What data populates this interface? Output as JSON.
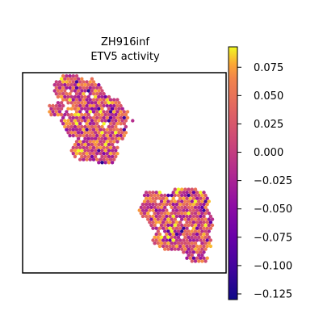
{
  "chart_data": {
    "type": "scatter",
    "title": "ZH916inf",
    "subtitle": "ETV5 activity",
    "xlabel": "",
    "ylabel": "",
    "grid": false,
    "colormap": "plasma",
    "colorbar": {
      "min": -0.13,
      "max": 0.093,
      "ticks": [
        0.075,
        0.05,
        0.025,
        0.0,
        -0.025,
        -0.05,
        -0.075,
        -0.1,
        -0.125
      ],
      "tick_labels": [
        "0.075",
        "0.050",
        "0.025",
        "0.000",
        "−0.025",
        "−0.050",
        "−0.075",
        "−0.100",
        "−0.125"
      ]
    },
    "regions": [
      {
        "name": "upper-left tissue",
        "mean_activity": 0.02
      },
      {
        "name": "lower-right tissue",
        "mean_activity": 0.015
      }
    ]
  }
}
